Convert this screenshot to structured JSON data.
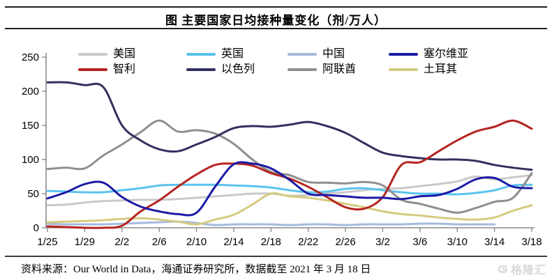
{
  "title": "图  主要国家日均接种量变化（剂/万人）",
  "source_note": "资料来源：Our World in Data，海通证券研究所，数据截至 2021 年 3 月 18 日",
  "watermark": "格隆汇",
  "axis_color": "#8c8c8c",
  "chart_data": {
    "type": "line",
    "x": [
      "1/25",
      "1/27",
      "1/29",
      "1/31",
      "2/2",
      "2/4",
      "2/6",
      "2/8",
      "2/10",
      "2/12",
      "2/14",
      "2/16",
      "2/18",
      "2/20",
      "2/22",
      "2/24",
      "2/26",
      "2/28",
      "3/2",
      "3/4",
      "3/6",
      "3/8",
      "3/10",
      "3/12",
      "3/14",
      "3/16",
      "3/18"
    ],
    "x_tick_labels": [
      "1/25",
      "1/29",
      "2/2",
      "2/6",
      "2/10",
      "2/14",
      "2/18",
      "2/22",
      "2/26",
      "3/2",
      "3/6",
      "3/10",
      "3/14",
      "3/18"
    ],
    "y_ticks": [
      0,
      50,
      100,
      150,
      200,
      250
    ],
    "ylim": [
      0,
      250
    ],
    "grid": false,
    "legend_position": "top",
    "series": [
      {
        "id": "usa",
        "name": "美国",
        "color": "#c9c9c9",
        "values": [
          33,
          34,
          37,
          39,
          40,
          41,
          41,
          42,
          44,
          46,
          48,
          50,
          50,
          47,
          48,
          50,
          52,
          55,
          57,
          58,
          61,
          64,
          68,
          75,
          71,
          74,
          77
        ]
      },
      {
        "id": "uk",
        "name": "英国",
        "color": "#5bc3ee",
        "values": [
          54,
          53,
          52,
          52,
          55,
          58,
          62,
          63,
          63,
          63,
          62,
          61,
          59,
          55,
          52,
          53,
          57,
          58,
          55,
          52,
          50,
          50,
          49,
          51,
          55,
          62,
          63
        ]
      },
      {
        "id": "china",
        "name": "中国",
        "color": "#a4bade",
        "values": [
          6,
          5,
          5,
          5,
          6,
          7,
          8,
          9,
          7,
          4,
          5,
          5,
          5,
          4,
          5,
          5,
          4,
          5,
          5,
          5,
          6,
          6,
          5,
          5,
          5,
          null,
          null
        ]
      },
      {
        "id": "serbia",
        "name": "塞尔维亚",
        "color": "#1a1aa6",
        "values": [
          43,
          52,
          64,
          66,
          45,
          31,
          24,
          20,
          22,
          60,
          93,
          94,
          87,
          70,
          50,
          48,
          46,
          44,
          44,
          42,
          46,
          48,
          57,
          71,
          73,
          60,
          58
        ]
      },
      {
        "id": "chile",
        "name": "智利",
        "color": "#b52420",
        "values": [
          2,
          1,
          0,
          0,
          3,
          24,
          40,
          60,
          78,
          92,
          94,
          91,
          80,
          72,
          60,
          45,
          30,
          28,
          45,
          92,
          96,
          112,
          128,
          141,
          148,
          157,
          145
        ]
      },
      {
        "id": "israel",
        "name": "以色列",
        "color": "#31305e",
        "values": [
          213,
          213,
          209,
          206,
          150,
          128,
          115,
          112,
          122,
          133,
          146,
          149,
          148,
          151,
          155,
          149,
          139,
          124,
          110,
          105,
          102,
          100,
          100,
          98,
          92,
          88,
          85
        ]
      },
      {
        "id": "uae",
        "name": "阿联酋",
        "color": "#8f8f8f",
        "values": [
          86,
          88,
          87,
          106,
          122,
          140,
          157,
          141,
          143,
          138,
          123,
          100,
          82,
          77,
          67,
          66,
          65,
          67,
          62,
          41,
          35,
          28,
          22,
          29,
          38,
          44,
          80
        ]
      },
      {
        "id": "turkey",
        "name": "土耳其",
        "color": "#d5cb7f",
        "values": [
          8,
          9,
          10,
          11,
          13,
          14,
          12,
          9,
          5,
          12,
          19,
          34,
          50,
          46,
          44,
          40,
          35,
          30,
          24,
          20,
          18,
          15,
          13,
          12,
          15,
          25,
          33
        ]
      }
    ]
  }
}
